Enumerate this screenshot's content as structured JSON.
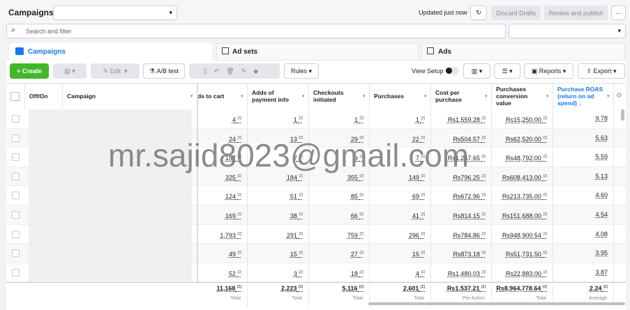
{
  "header": {
    "title": "Campaigns",
    "status": "Updated just now",
    "discard": "Discard Drafts",
    "publish": "Review and publish",
    "more": "···"
  },
  "search": {
    "placeholder": "Search and filter"
  },
  "tabs": [
    "Campaigns",
    "Ad sets",
    "Ads"
  ],
  "toolbar": {
    "create": "Create",
    "edit": "Edit",
    "ab_test": "A/B test",
    "rules": "Rules",
    "view_setup": "View Setup",
    "reports": "Reports",
    "export": "Export"
  },
  "table": {
    "columns": [
      "Off/On",
      "Campaign",
      "ds to cart",
      "Adds of payment info",
      "Checkouts initiated",
      "Purchases",
      "Cost per purchase",
      "Purchases conversion value",
      "Purchase ROAS (return on ad spend) ↓"
    ],
    "marker": "[2]",
    "rows": [
      [
        "4",
        "1",
        "1",
        "1",
        "Rs1,559.28",
        "Rs15,250.00",
        "9.78"
      ],
      [
        "24",
        "13",
        "29",
        "22",
        "Rs504.57",
        "Rs62,520.00",
        "5.63"
      ],
      [
        "157",
        "7",
        "9",
        "7",
        "Rs1,247.65",
        "Rs48,792.00",
        "5.59"
      ],
      [
        "325",
        "184",
        "355",
        "149",
        "Rs796.25",
        "Rs608,413.00",
        "5.13"
      ],
      [
        "124",
        "51",
        "85",
        "69",
        "Rs672.96",
        "Rs213,735.00",
        "4.60"
      ],
      [
        "169",
        "38",
        "66",
        "41",
        "Rs814.15",
        "Rs151,688.00",
        "4.54"
      ],
      [
        "1,793",
        "291",
        "759",
        "296",
        "Rs784.86",
        "Rs948,900.54",
        "4.08"
      ],
      [
        "49",
        "15",
        "27",
        "15",
        "Rs873.18",
        "Rs51,731.50",
        "3.95"
      ],
      [
        "52",
        "3",
        "18",
        "4",
        "Rs1,480.03",
        "Rs22,883.00",
        "3.87"
      ]
    ],
    "totals": [
      "11,168",
      "2,223",
      "5,116",
      "2,601",
      "Rs1,537.21",
      "Rs8,964,778.64",
      "2.24"
    ],
    "total_labels": [
      "Total",
      "Total",
      "Total",
      "Total",
      "Per Action",
      "Total",
      "Average"
    ]
  },
  "watermark": "mr.sajid8023@gmail.com"
}
